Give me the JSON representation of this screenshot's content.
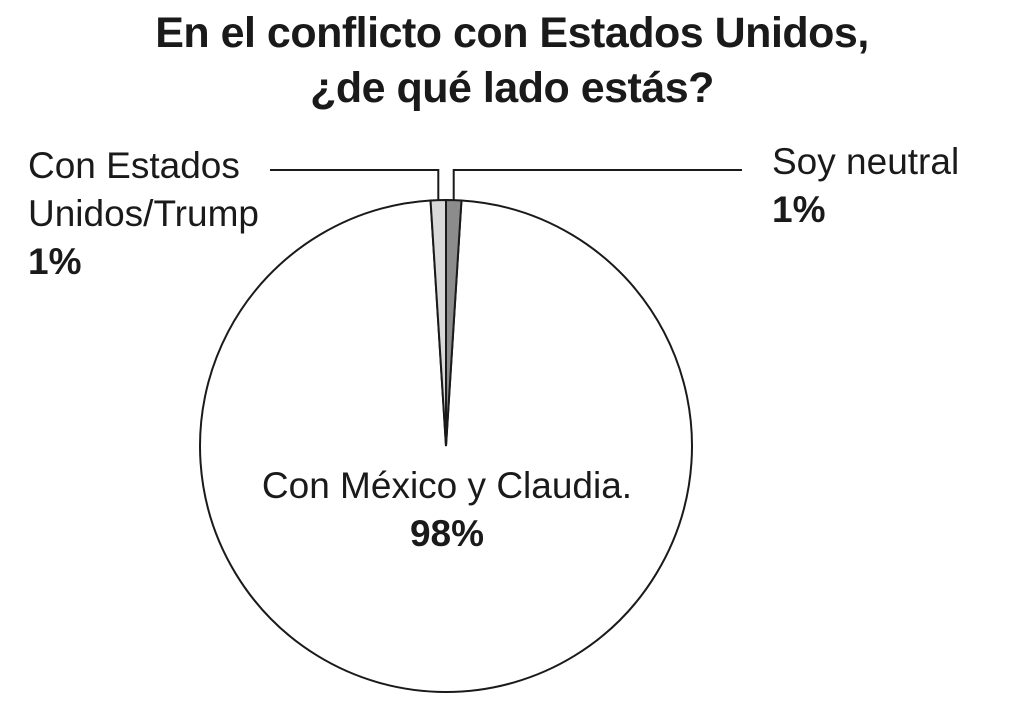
{
  "colors": {
    "mexico": "#ffffff",
    "usa": "#d9d9d9",
    "neutral": "#8c8c8c",
    "stroke": "#1a1a1a"
  },
  "chart_data": {
    "type": "pie",
    "title": [
      "En el conflicto con Estados Unidos,",
      "¿de qué lado estás?"
    ],
    "slices": [
      {
        "label": "Con México y Claudia.",
        "value": 98,
        "value_label": "98%"
      },
      {
        "label": "Con Estados Unidos/Trump",
        "label_lines": [
          "Con Estados",
          "Unidos/Trump"
        ],
        "value": 1,
        "value_label": "1%"
      },
      {
        "label": "Soy neutral",
        "value": 1,
        "value_label": "1%"
      }
    ]
  }
}
